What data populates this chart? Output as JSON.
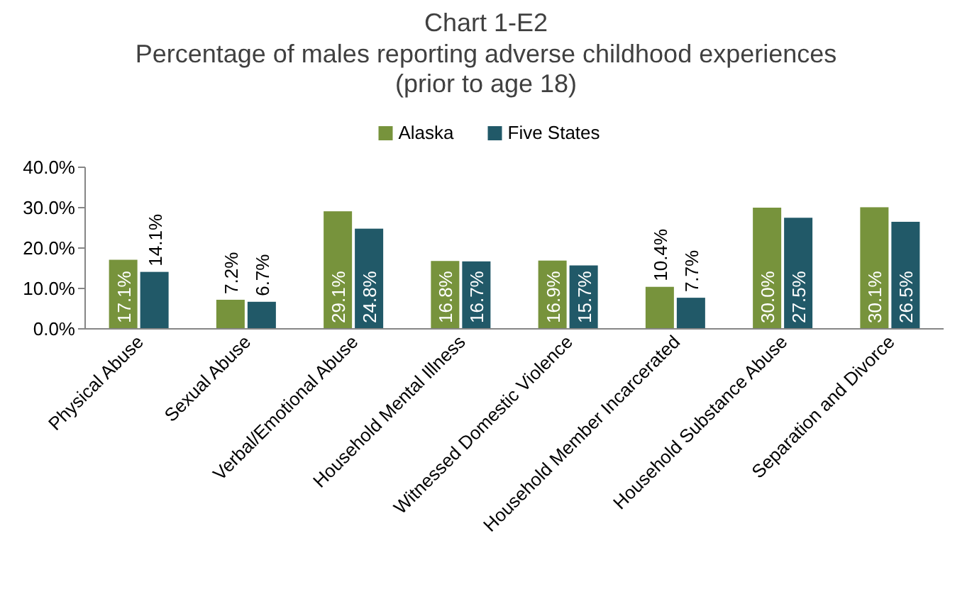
{
  "chart_data": {
    "type": "bar",
    "title": "Chart 1-E2",
    "subtitle": "Percentage of males reporting adverse childhood experiences (prior to age 18)",
    "categories": [
      "Physical Abuse",
      "Sexual Abuse",
      "Verbal/Emotional Abuse",
      "Household Mental Illness",
      "Witnessed Domestic Violence",
      "Household Member Incarcerated",
      "Household Substance Abuse",
      "Separation and Divorce"
    ],
    "series": [
      {
        "name": "Alaska",
        "color": "#77933c",
        "values": [
          17.1,
          7.2,
          29.1,
          16.8,
          16.9,
          10.4,
          30.0,
          30.1
        ],
        "value_labels": [
          "17.1%",
          "7.2%",
          "29.1%",
          "16.8%",
          "16.9%",
          "10.4%",
          "30.0%",
          "30.1%"
        ]
      },
      {
        "name": "Five States",
        "color": "#215968",
        "values": [
          14.1,
          6.7,
          24.8,
          16.7,
          15.7,
          7.7,
          27.5,
          26.5
        ],
        "value_labels": [
          "14.1%",
          "6.7%",
          "24.8%",
          "16.7%",
          "15.7%",
          "7.7%",
          "27.5%",
          "26.5%"
        ]
      }
    ],
    "ylim": [
      0,
      40
    ],
    "yticks": [
      {
        "value": 0,
        "label": "0.0%"
      },
      {
        "value": 10,
        "label": "10.0%"
      },
      {
        "value": 20,
        "label": "20.0%"
      },
      {
        "value": 30,
        "label": "30.0%"
      },
      {
        "value": 40,
        "label": "40.0%"
      }
    ],
    "legend": "top",
    "grid": false
  }
}
